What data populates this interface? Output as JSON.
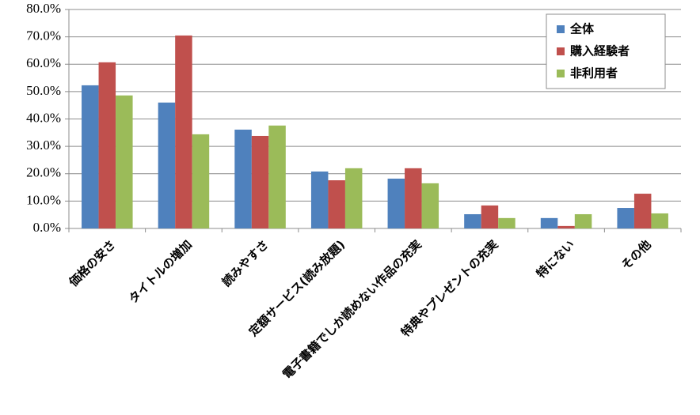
{
  "chart_data": {
    "type": "bar",
    "categories": [
      "価格の安さ",
      "タイトルの増加",
      "読みやすさ",
      "定額サービス(読み放題)",
      "電子書籍でしか読めない作品の充実",
      "特典やプレゼントの充実",
      "特にない",
      "その他"
    ],
    "series": [
      {
        "name": "全体",
        "color": "#4f81bd",
        "values": [
          52.3,
          46.0,
          36.1,
          20.8,
          18.2,
          5.2,
          3.8,
          7.5
        ]
      },
      {
        "name": "購入経験者",
        "color": "#c0504d",
        "values": [
          60.7,
          70.5,
          33.8,
          17.6,
          22.0,
          8.4,
          0.9,
          12.7
        ]
      },
      {
        "name": "非利用者",
        "color": "#9bbb59",
        "values": [
          48.6,
          34.4,
          37.6,
          22.0,
          16.5,
          3.8,
          5.2,
          5.5
        ]
      }
    ],
    "ylim": [
      0,
      80
    ],
    "yticks": [
      {
        "value": 0,
        "label": "0.0%"
      },
      {
        "value": 10,
        "label": "10.0%"
      },
      {
        "value": 20,
        "label": "20.0%"
      },
      {
        "value": 30,
        "label": "30.0%"
      },
      {
        "value": 40,
        "label": "40.0%"
      },
      {
        "value": 50,
        "label": "50.0%"
      },
      {
        "value": 60,
        "label": "60.0%"
      },
      {
        "value": 70,
        "label": "70.0%"
      },
      {
        "value": 80,
        "label": "80.0%"
      }
    ],
    "grid": true,
    "legend": "upper right"
  }
}
